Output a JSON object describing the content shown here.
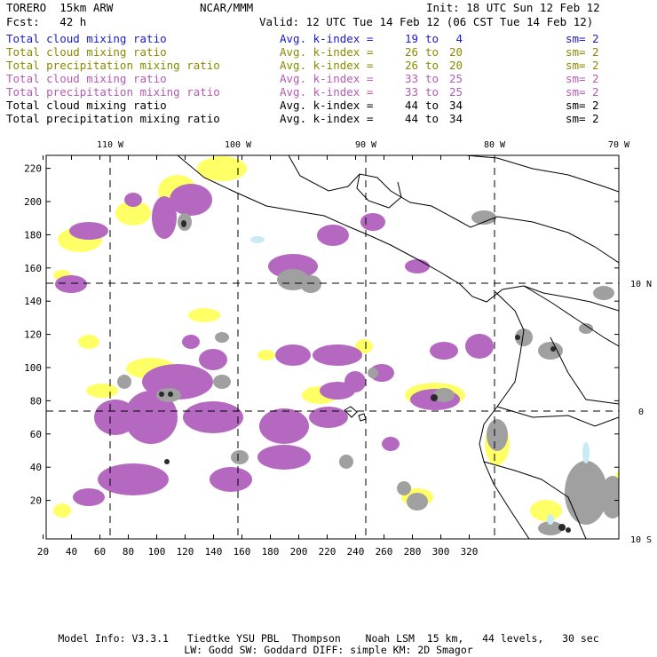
{
  "header": {
    "model": "TORERO  15km ARW",
    "source": "NCAR/MMM",
    "init": "Init: 18 UTC Sun 12 Feb 12",
    "fcst": "Fcst:   42 h",
    "valid": "Valid: 12 UTC Tue 14 Feb 12 (06 CST Tue 14 Feb 12)"
  },
  "legend": [
    {
      "field": "Total cloud mixing ratio",
      "avg": "Avg. k-index =",
      "from": "19",
      "to_word": "to",
      "to": "4",
      "sm": "sm=",
      "sm_val": "2",
      "color": "#1a1acc"
    },
    {
      "field": "Total cloud mixing ratio",
      "avg": "Avg. k-index =",
      "from": "26",
      "to_word": "to",
      "to": "20",
      "sm": "sm=",
      "sm_val": "2",
      "color": "#8a8a00"
    },
    {
      "field": "Total precipitation mixing ratio",
      "avg": "Avg. k-index =",
      "from": "26",
      "to_word": "to",
      "to": "20",
      "sm": "sm=",
      "sm_val": "2",
      "color": "#8a8a00"
    },
    {
      "field": "Total cloud mixing ratio",
      "avg": "Avg. k-index =",
      "from": "33",
      "to_word": "to",
      "to": "25",
      "sm": "sm=",
      "sm_val": "2",
      "color": "#b45ab4"
    },
    {
      "field": "Total precipitation mixing ratio",
      "avg": "Avg. k-index =",
      "from": "33",
      "to_word": "to",
      "to": "25",
      "sm": "sm=",
      "sm_val": "2",
      "color": "#b45ab4"
    },
    {
      "field": "Total cloud mixing ratio",
      "avg": "Avg. k-index =",
      "from": "44",
      "to_word": "to",
      "to": "34",
      "sm": "sm=",
      "sm_val": "2",
      "color": "#000000"
    },
    {
      "field": "Total precipitation mixing ratio",
      "avg": "Avg. k-index =",
      "from": "44",
      "to_word": "to",
      "to": "34",
      "sm": "sm=",
      "sm_val": "2",
      "color": "#000000"
    }
  ],
  "map": {
    "x_ticks": [
      "20",
      "40",
      "60",
      "80",
      "100",
      "120",
      "140",
      "160",
      "180",
      "200",
      "220",
      "240",
      "260",
      "280",
      "300",
      "320"
    ],
    "y_ticks": [
      "20",
      "40",
      "60",
      "80",
      "100",
      "120",
      "140",
      "160",
      "180",
      "200",
      "220"
    ],
    "lon_labels": [
      "110 W",
      "100 W",
      "90 W",
      "80 W",
      "70 W"
    ],
    "lat_labels": [
      "10 N",
      "0",
      "10 S"
    ]
  },
  "colors": {
    "yellow": "#ffff66",
    "magenta": "#b468c0",
    "gray": "#a0a0a0",
    "dark": "#2a2a2a",
    "water": "#c8ecf4"
  },
  "footer": {
    "line1": "Model Info: V3.3.1   Tiedtke YSU PBL  Thompson    Noah LSM  15 km,   44 levels,   30 sec",
    "line2": "LW: Godd SW: Goddard DIFF: simple KM: 2D Smagor"
  }
}
